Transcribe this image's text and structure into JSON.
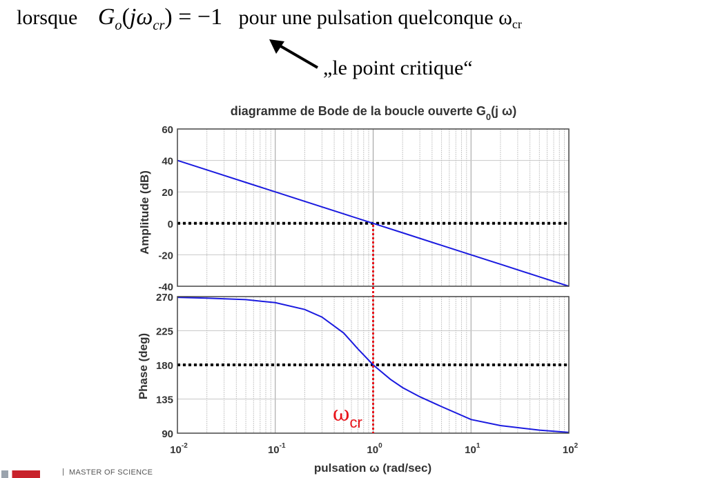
{
  "header": {
    "prefix": "lorsque",
    "formula": {
      "G": "G",
      "o": "o",
      "open": "(",
      "j": "j",
      "omega": "ω",
      "cr": "cr",
      "close": ")",
      "equals": "= −1"
    },
    "suffix_text": "pour une pulsation quelconque ω",
    "suffix_sub": "cr",
    "critical_label": "„le point critique“"
  },
  "chart_data": [
    {
      "type": "line",
      "title": "diagramme de Bode de la boucle ouverte G",
      "title_sub": "0",
      "title_tail": "(j ω)",
      "ylabel": "Amplitude (dB)",
      "xscale": "log",
      "xlim": [
        0.01,
        100
      ],
      "ylim": [
        -40,
        60
      ],
      "yticks": [
        "60",
        "40",
        "20",
        "0",
        "-20",
        "-40"
      ],
      "grid": true,
      "series": [
        {
          "color": "#1a1adf",
          "x": [
            0.01,
            0.02,
            0.05,
            0.1,
            0.2,
            0.5,
            1,
            2,
            5,
            10,
            20,
            50,
            100
          ],
          "y": [
            40,
            34,
            26,
            20,
            14,
            6,
            0,
            -6,
            -14,
            -20,
            -26,
            -34,
            -40
          ]
        }
      ],
      "reference_line": {
        "y": 0,
        "style": "dotted",
        "color": "#000000"
      }
    },
    {
      "type": "line",
      "ylabel": "Phase (deg)",
      "xlabel": "pulsation ω  (rad/sec)",
      "xscale": "log",
      "xlim": [
        0.01,
        100
      ],
      "ylim": [
        90,
        270
      ],
      "yticks": [
        "270",
        "225",
        "180",
        "135",
        "90"
      ],
      "xtick_base": "10",
      "xtick_exps": [
        "-2",
        "-1",
        "0",
        "1",
        "2"
      ],
      "grid": true,
      "series": [
        {
          "color": "#1a1adf",
          "x": [
            0.01,
            0.02,
            0.05,
            0.1,
            0.2,
            0.3,
            0.5,
            0.7,
            1,
            1.5,
            2,
            3,
            5,
            10,
            20,
            50,
            100
          ],
          "y": [
            269,
            268,
            266,
            262,
            253,
            243,
            222,
            201,
            180,
            161,
            150,
            138,
            125,
            108,
            100,
            94,
            91
          ]
        }
      ],
      "reference_line": {
        "y": 180,
        "style": "dotted",
        "color": "#000000"
      }
    }
  ],
  "annotation": {
    "omega": "ω",
    "sub": "cr",
    "x": 1,
    "color": "#e8131a"
  },
  "footer": {
    "separator": "|",
    "institution_label": "MASTER OF SCIENCE"
  }
}
